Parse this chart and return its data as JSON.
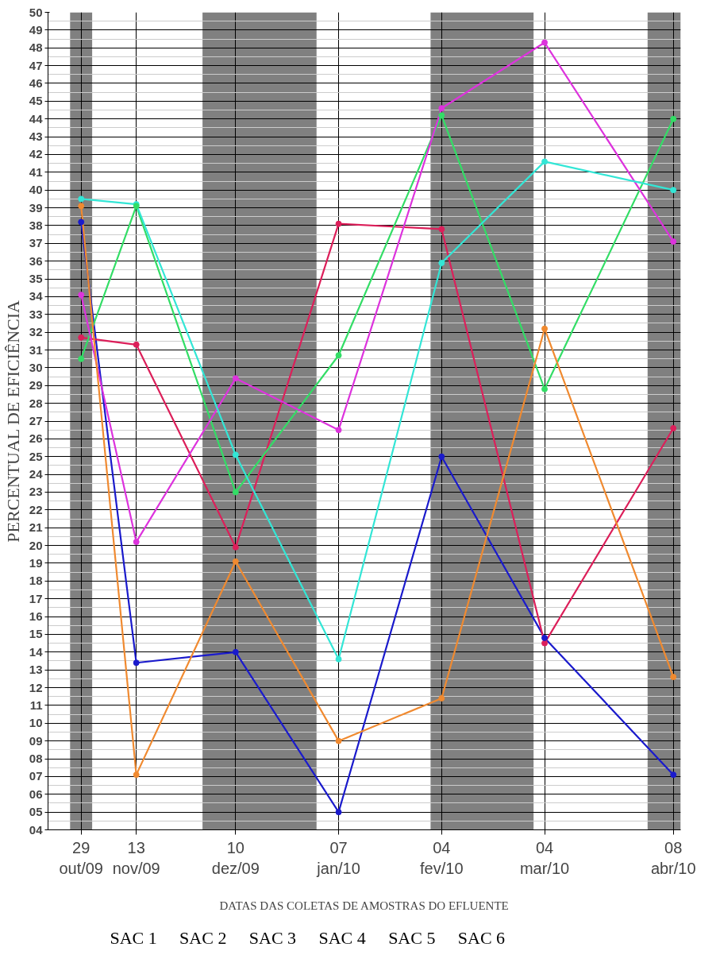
{
  "chart_data": {
    "type": "line",
    "xlabel": "DATAS DAS COLETAS DE AMOSTRAS DO EFLUENTE",
    "ylabel": "PERCENTUAL DE EFICIÊNCIA",
    "x": [
      "2009-10-29",
      "2009-11-13",
      "2009-12-10",
      "2010-01-07",
      "2010-02-04",
      "2010-03-04",
      "2010-04-08"
    ],
    "xlim": [
      "2009-10-20",
      "2010-04-10"
    ],
    "xticks": [
      {
        "value": "2009-10-29",
        "label": "29\nout/09"
      },
      {
        "value": "2009-11-13",
        "label": "13\nnov/09"
      },
      {
        "value": "2009-12-10",
        "label": "10\ndez/09"
      },
      {
        "value": "2010-01-07",
        "label": "07\njan/10"
      },
      {
        "value": "2010-02-04",
        "label": "04\nfev/10"
      },
      {
        "value": "2010-03-04",
        "label": "04\nmar/10"
      },
      {
        "value": "2010-04-08",
        "label": "08\nabr/10"
      }
    ],
    "ylim": [
      4,
      50
    ],
    "yticks": [
      {
        "value": 4,
        "label": "04"
      },
      {
        "value": 5,
        "label": "05"
      },
      {
        "value": 6,
        "label": "06"
      },
      {
        "value": 7,
        "label": "07"
      },
      {
        "value": 8,
        "label": "08"
      },
      {
        "value": 9,
        "label": "09"
      },
      10,
      11,
      12,
      13,
      14,
      15,
      16,
      17,
      18,
      19,
      20,
      21,
      22,
      23,
      24,
      25,
      26,
      27,
      28,
      29,
      30,
      31,
      32,
      33,
      34,
      35,
      36,
      37,
      38,
      39,
      40,
      41,
      42,
      43,
      44,
      45,
      46,
      47,
      48,
      49,
      50
    ],
    "series": [
      {
        "color": "#1a1acc",
        "values": [
          38.2,
          13.4,
          14.0,
          5.0,
          25.0,
          14.8,
          7.1
        ]
      },
      {
        "color": "#dc1f5a",
        "values": [
          31.7,
          31.3,
          19.9,
          38.1,
          37.8,
          14.5,
          26.6
        ]
      },
      {
        "color": "#33dd66",
        "values": [
          30.5,
          39.1,
          23.0,
          30.7,
          44.2,
          28.8,
          44.0
        ]
      },
      {
        "color": "#dd33dd",
        "values": [
          34.1,
          20.2,
          29.4,
          26.5,
          44.6,
          48.3,
          37.1
        ]
      },
      {
        "color": "#33e6d6",
        "values": [
          39.5,
          39.2,
          25.1,
          13.6,
          35.9,
          41.6,
          40.0
        ]
      },
      {
        "color": "#f08a30",
        "values": [
          39.1,
          7.1,
          19.1,
          9.0,
          11.4,
          32.2,
          12.6
        ]
      }
    ],
    "bands": [
      {
        "axis": "x",
        "from": "2009-10-26",
        "to": "2009-11-01",
        "color": "#808080"
      },
      {
        "axis": "x",
        "from": "2009-12-01",
        "to": "2010-01-01",
        "color": "#808080"
      },
      {
        "axis": "x",
        "from": "2010-02-01",
        "to": "2010-03-01",
        "color": "#808080"
      },
      {
        "axis": "x",
        "from": "2010-04-01",
        "to": "2010-04-10",
        "color": "#808080"
      }
    ],
    "annotations": [
      "SAC 1",
      "SAC 2",
      "SAC 3",
      "SAC 4",
      "SAC 5",
      "SAC 6"
    ],
    "grid": true,
    "marker": "circle",
    "line_style": "solid"
  }
}
